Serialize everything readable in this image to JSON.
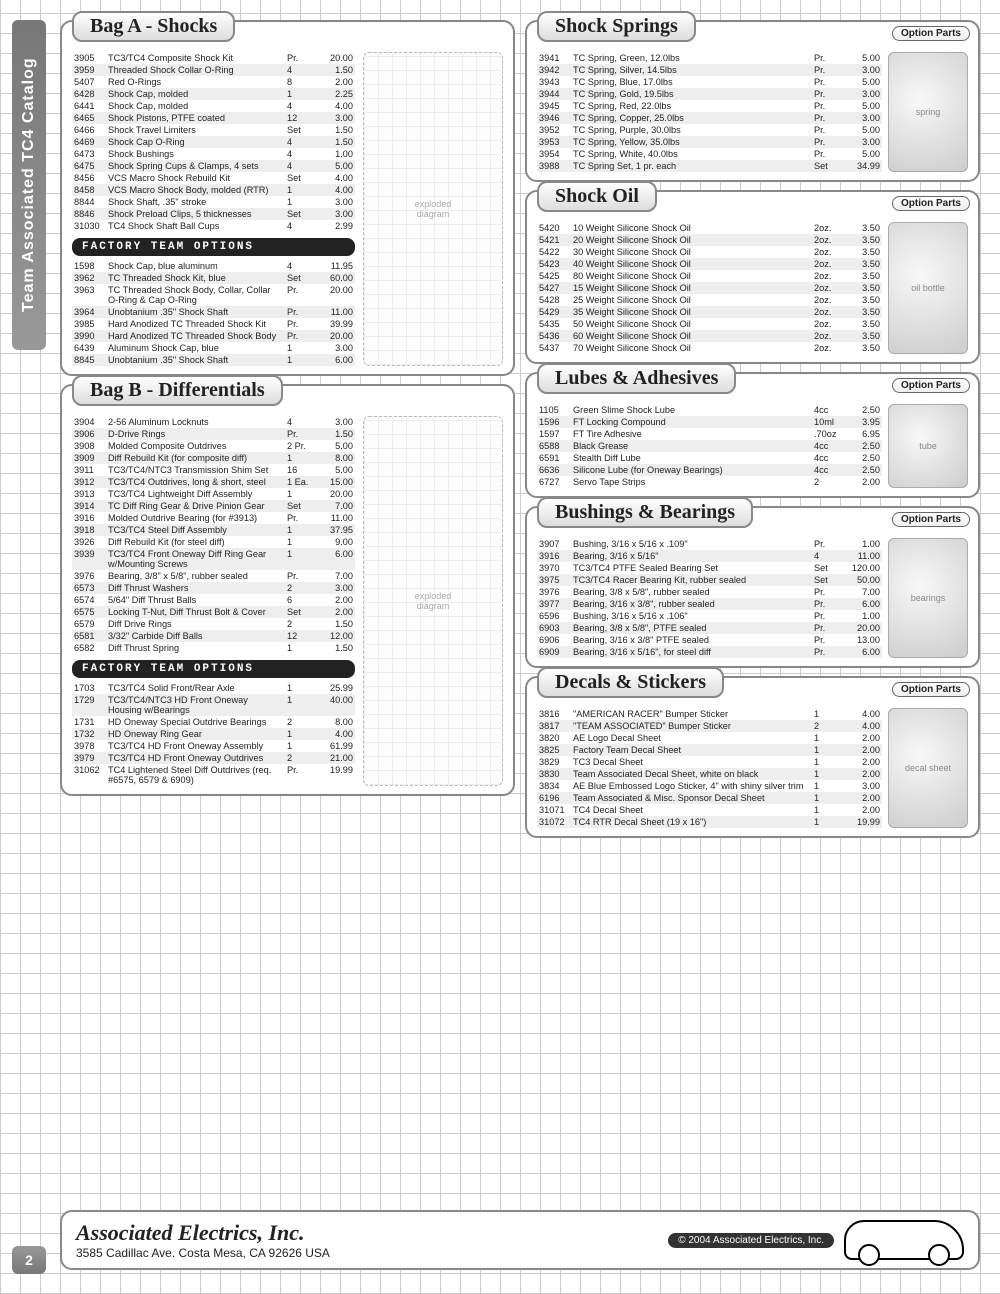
{
  "sidebarTitle": "Team Associated TC4 Catalog",
  "pageNumber": "2",
  "optionPartsLabel": "Option Parts",
  "factoryLabel": "Factory Team Options",
  "footer": {
    "company": "Associated Electrics, Inc.",
    "address": "3585 Cadillac Ave.  Costa Mesa, CA 92626  USA",
    "copyright": "© 2004 Associated Electrics, Inc.",
    "logo": "TC4"
  },
  "left": [
    {
      "title": "Bag A - Shocks",
      "hasDiagram": true,
      "rows": [
        [
          "3905",
          "TC3/TC4 Composite Shock Kit",
          "Pr.",
          "20.00"
        ],
        [
          "3959",
          "Threaded Shock Collar O-Ring",
          "4",
          "1.50"
        ],
        [
          "5407",
          "Red O-Rings",
          "8",
          "2.00"
        ],
        [
          "6428",
          "Shock Cap, molded",
          "1",
          "2.25"
        ],
        [
          "6441",
          "Shock Cap, molded",
          "4",
          "4.00"
        ],
        [
          "6465",
          "Shock Pistons, PTFE coated",
          "12",
          "3.00"
        ],
        [
          "6466",
          "Shock Travel Limiters",
          "Set",
          "1.50"
        ],
        [
          "6469",
          "Shock Cap O-Ring",
          "4",
          "1.50"
        ],
        [
          "6473",
          "Shock Bushings",
          "4",
          "1.00"
        ],
        [
          "6475",
          "Shock Spring Cups & Clamps, 4 sets",
          "4",
          "5.00"
        ],
        [
          "8456",
          "VCS Macro Shock Rebuild Kit",
          "Set",
          "4.00"
        ],
        [
          "8458",
          "VCS Macro Shock Body, molded (RTR)",
          "1",
          "4.00"
        ],
        [
          "8844",
          "Shock Shaft, .35\" stroke",
          "1",
          "3.00"
        ],
        [
          "8846",
          "Shock Preload Clips, 5 thicknesses",
          "Set",
          "3.00"
        ],
        [
          "31030",
          "TC4 Shock Shaft Ball Cups",
          "4",
          "2.99"
        ]
      ],
      "factoryRows": [
        [
          "1598",
          "Shock Cap, blue aluminum",
          "4",
          "11.95"
        ],
        [
          "3962",
          "TC Threaded Shock Kit, blue",
          "Set",
          "60.00"
        ],
        [
          "3963",
          "TC Threaded Shock Body, Collar, Collar O-Ring & Cap O-Ring",
          "Pr.",
          "20.00"
        ],
        [
          "3964",
          "Unobtanium .35\" Shock Shaft",
          "Pr.",
          "11.00"
        ],
        [
          "3985",
          "Hard Anodized TC Threaded Shock Kit",
          "Pr.",
          "39.99"
        ],
        [
          "3990",
          "Hard Anodized TC Threaded Shock Body",
          "Pr.",
          "20.00"
        ],
        [
          "6439",
          "Aluminum Shock Cap, blue",
          "1",
          "3.00"
        ],
        [
          "8845",
          "Unobtanium .35\" Shock Shaft",
          "1",
          "6.00"
        ]
      ]
    },
    {
      "title": "Bag B - Differentials",
      "hasDiagram": true,
      "rows": [
        [
          "3904",
          "2-56 Aluminum Locknuts",
          "4",
          "3.00"
        ],
        [
          "3906",
          "D-Drive Rings",
          "Pr.",
          "1.50"
        ],
        [
          "3908",
          "Molded Composite Outdrives",
          "2 Pr.",
          "5.00"
        ],
        [
          "3909",
          "Diff Rebuild Kit (for composite diff)",
          "1",
          "8.00"
        ],
        [
          "3911",
          "TC3/TC4/NTC3 Transmission Shim Set",
          "16",
          "5.00"
        ],
        [
          "3912",
          "TC3/TC4 Outdrives, long & short, steel",
          "1 Ea.",
          "15.00"
        ],
        [
          "3913",
          "TC3/TC4 Lightweight Diff Assembly",
          "1",
          "20.00"
        ],
        [
          "3914",
          "TC Diff Ring Gear & Drive Pinion Gear",
          "Set",
          "7.00"
        ],
        [
          "3916",
          "Molded Outdrive Bearing (for #3913)",
          "Pr.",
          "11.00"
        ],
        [
          "3918",
          "TC3/TC4 Steel Diff Assembly",
          "1",
          "37.95"
        ],
        [
          "3926",
          "Diff Rebuild Kit (for steel diff)",
          "1",
          "9.00"
        ],
        [
          "3939",
          "TC3/TC4 Front Oneway Diff Ring Gear w/Mounting Screws",
          "1",
          "6.00"
        ],
        [
          "3976",
          "Bearing, 3/8\" x 5/8\", rubber sealed",
          "Pr.",
          "7.00"
        ],
        [
          "6573",
          "Diff Thrust Washers",
          "2",
          "3.00"
        ],
        [
          "6574",
          "5/64\" Diff Thrust Balls",
          "6",
          "2.00"
        ],
        [
          "6575",
          "Locking T-Nut, Diff Thrust Bolt & Cover",
          "Set",
          "2.00"
        ],
        [
          "6579",
          "Diff Drive Rings",
          "2",
          "1.50"
        ],
        [
          "6581",
          "3/32\" Carbide Diff Balls",
          "12",
          "12.00"
        ],
        [
          "6582",
          "Diff Thrust Spring",
          "1",
          "1.50"
        ]
      ],
      "factoryRows": [
        [
          "1703",
          "TC3/TC4 Solid Front/Rear Axle",
          "1",
          "25.99"
        ],
        [
          "1729",
          "TC3/TC4/NTC3 HD Front Oneway Housing w/Bearings",
          "1",
          "40.00"
        ],
        [
          "1731",
          "HD Oneway Special Outdrive Bearings",
          "2",
          "8.00"
        ],
        [
          "1732",
          "HD Oneway Ring Gear",
          "1",
          "4.00"
        ],
        [
          "3978",
          "TC3/TC4 HD Front Oneway Assembly",
          "1",
          "61.99"
        ],
        [
          "3979",
          "TC3/TC4 HD Front Oneway Outdrives",
          "2",
          "21.00"
        ],
        [
          "31062",
          "TC4 Lightened Steel Diff Outdrives (req. #6575, 6579 & 6909)",
          "Pr.",
          "19.99"
        ]
      ]
    }
  ],
  "right": [
    {
      "title": "Shock Springs",
      "thumb": "spring",
      "rows": [
        [
          "3941",
          "TC Spring, Green, 12.0lbs",
          "Pr.",
          "5.00"
        ],
        [
          "3942",
          "TC Spring, Silver, 14.5lbs",
          "Pr.",
          "3.00"
        ],
        [
          "3943",
          "TC Spring, Blue, 17.0lbs",
          "Pr.",
          "5.00"
        ],
        [
          "3944",
          "TC Spring, Gold, 19.5lbs",
          "Pr.",
          "3.00"
        ],
        [
          "3945",
          "TC Spring, Red, 22.0lbs",
          "Pr.",
          "5.00"
        ],
        [
          "3946",
          "TC Spring, Copper, 25.0lbs",
          "Pr.",
          "3.00"
        ],
        [
          "3952",
          "TC Spring, Purple, 30.0lbs",
          "Pr.",
          "5.00"
        ],
        [
          "3953",
          "TC Spring, Yellow, 35.0lbs",
          "Pr.",
          "3.00"
        ],
        [
          "3954",
          "TC Spring, White, 40.0lbs",
          "Pr.",
          "5.00"
        ],
        [
          "3988",
          "TC Spring Set, 1 pr. each",
          "Set",
          "34.99"
        ]
      ]
    },
    {
      "title": "Shock Oil",
      "thumb": "oil bottle",
      "rows": [
        [
          "5420",
          "10 Weight Silicone Shock Oil",
          "2oz.",
          "3.50"
        ],
        [
          "5421",
          "20 Weight Silicone Shock Oil",
          "2oz.",
          "3.50"
        ],
        [
          "5422",
          "30 Weight Silicone Shock Oil",
          "2oz.",
          "3.50"
        ],
        [
          "5423",
          "40 Weight Silicone Shock Oil",
          "2oz.",
          "3.50"
        ],
        [
          "5425",
          "80 Weight Silicone Shock Oil",
          "2oz.",
          "3.50"
        ],
        [
          "5427",
          "15 Weight Silicone Shock Oil",
          "2oz.",
          "3.50"
        ],
        [
          "5428",
          "25 Weight Silicone Shock Oil",
          "2oz.",
          "3.50"
        ],
        [
          "5429",
          "35 Weight Silicone Shock Oil",
          "2oz.",
          "3.50"
        ],
        [
          "5435",
          "50 Weight Silicone Shock Oil",
          "2oz.",
          "3.50"
        ],
        [
          "5436",
          "60 Weight Silicone Shock Oil",
          "2oz.",
          "3.50"
        ],
        [
          "5437",
          "70 Weight Silicone Shock Oil",
          "2oz.",
          "3.50"
        ]
      ]
    },
    {
      "title": "Lubes & Adhesives",
      "thumb": "tube",
      "rows": [
        [
          "1105",
          "Green Slime Shock Lube",
          "4cc",
          "2.50"
        ],
        [
          "1596",
          "FT Locking Compound",
          "10ml",
          "3.95"
        ],
        [
          "1597",
          "FT Tire Adhesive",
          ".70oz",
          "6.95"
        ],
        [
          "6588",
          "Black Grease",
          "4cc",
          "2.50"
        ],
        [
          "6591",
          "Stealth Diff Lube",
          "4cc",
          "2.50"
        ],
        [
          "6636",
          "Silicone Lube (for Oneway Bearings)",
          "4cc",
          "2.50"
        ],
        [
          "6727",
          "Servo Tape Strips",
          "2",
          "2.00"
        ]
      ]
    },
    {
      "title": "Bushings & Bearings",
      "thumb": "bearings",
      "rows": [
        [
          "3907",
          "Bushing, 3/16 x 5/16 x .109\"",
          "Pr.",
          "1.00"
        ],
        [
          "3916",
          "Bearing, 3/16 x 5/16\"",
          "4",
          "11.00"
        ],
        [
          "3970",
          "TC3/TC4 PTFE Sealed Bearing Set",
          "Set",
          "120.00"
        ],
        [
          "3975",
          "TC3/TC4 Racer Bearing Kit, rubber sealed",
          "Set",
          "50.00"
        ],
        [
          "3976",
          "Bearing, 3/8 x 5/8\", rubber sealed",
          "Pr.",
          "7.00"
        ],
        [
          "3977",
          "Bearing, 3/16 x 3/8\", rubber sealed",
          "Pr.",
          "6.00"
        ],
        [
          "6596",
          "Bushing, 3/16 x 5/16 x .106\"",
          "Pr.",
          "1.00"
        ],
        [
          "6903",
          "Bearing, 3/8 x 5/8\", PTFE sealed",
          "Pr.",
          "20.00"
        ],
        [
          "6906",
          "Bearing, 3/16 x 3/8\" PTFE sealed",
          "Pr.",
          "13.00"
        ],
        [
          "6909",
          "Bearing, 3/16 x 5/16\", for steel diff",
          "Pr.",
          "6.00"
        ]
      ]
    },
    {
      "title": "Decals & Stickers",
      "thumb": "decal sheet",
      "rows": [
        [
          "3816",
          "\"AMERICAN RACER\" Bumper Sticker",
          "1",
          "4.00"
        ],
        [
          "3817",
          "\"TEAM ASSOCIATED\" Bumper Sticker",
          "2",
          "4.00"
        ],
        [
          "3820",
          "AE Logo Decal Sheet",
          "1",
          "2.00"
        ],
        [
          "3825",
          "Factory Team Decal Sheet",
          "1",
          "2.00"
        ],
        [
          "3829",
          "TC3 Decal Sheet",
          "1",
          "2.00"
        ],
        [
          "3830",
          "Team Associated Decal Sheet, white on black",
          "1",
          "2.00"
        ],
        [
          "3834",
          "AE Blue Embossed Logo Sticker, 4\" with shiny silver trim",
          "1",
          "3.00"
        ],
        [
          "6196",
          "Team Associated & Misc. Sponsor Decal Sheet",
          "1",
          "2.00"
        ],
        [
          "31071",
          "TC4 Decal Sheet",
          "1",
          "2.00"
        ],
        [
          "31072",
          "TC4 RTR Decal Sheet (19 x 16\")",
          "1",
          "19.99"
        ]
      ]
    }
  ]
}
